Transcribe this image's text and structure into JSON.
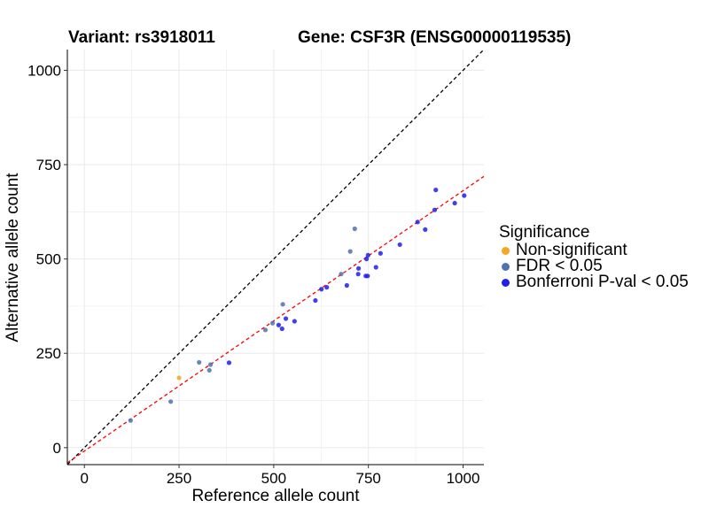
{
  "header": {
    "variant_label": "Variant: rs3918011",
    "gene_label": "Gene: CSF3R (ENSG00000119535)"
  },
  "colors": {
    "non_significant": "#F5A623",
    "fdr": "#4F72B0",
    "bonferroni": "#1F1FF0",
    "identity_line": "#000000",
    "fit_line": "#FF0000",
    "grid": "#EBEBEB"
  },
  "chart_data": {
    "type": "scatter",
    "title": "",
    "xlabel": "Reference allele count",
    "ylabel": "Alternative allele count",
    "xlim": [
      -45,
      1055
    ],
    "ylim": [
      -45,
      1055
    ],
    "xticks": [
      0,
      250,
      500,
      750,
      1000
    ],
    "yticks": [
      0,
      250,
      500,
      750,
      1000
    ],
    "grid": true,
    "legend_position": "right",
    "legend_title": "Significance",
    "reference_lines": [
      {
        "name": "identity",
        "style": "dashed",
        "color": "#000000",
        "slope": 1.0,
        "intercept": 0
      },
      {
        "name": "fit",
        "style": "dashed",
        "color": "#FF0000",
        "slope": 0.69,
        "intercept": -9
      }
    ],
    "series": [
      {
        "name": "Non-significant",
        "color": "#F5A623",
        "points": [
          [
            250,
            185
          ]
        ]
      },
      {
        "name": "FDR < 0.05",
        "color": "#4F72B0",
        "points": [
          [
            122,
            72
          ],
          [
            228,
            122
          ],
          [
            303,
            226
          ],
          [
            330,
            205
          ],
          [
            333,
            220
          ],
          [
            478,
            312
          ],
          [
            497,
            330
          ],
          [
            524,
            380
          ],
          [
            678,
            460
          ],
          [
            702,
            520
          ],
          [
            714,
            580
          ]
        ]
      },
      {
        "name": "Bonferroni P-val < 0.05",
        "color": "#1F1FF0",
        "points": [
          [
            382,
            225
          ],
          [
            513,
            325
          ],
          [
            522,
            315
          ],
          [
            532,
            342
          ],
          [
            555,
            335
          ],
          [
            610,
            390
          ],
          [
            626,
            420
          ],
          [
            640,
            425
          ],
          [
            693,
            430
          ],
          [
            723,
            460
          ],
          [
            724,
            475
          ],
          [
            743,
            455
          ],
          [
            745,
            500
          ],
          [
            748,
            455
          ],
          [
            749,
            510
          ],
          [
            770,
            478
          ],
          [
            782,
            515
          ],
          [
            833,
            538
          ],
          [
            880,
            598
          ],
          [
            900,
            578
          ],
          [
            925,
            630
          ],
          [
            928,
            683
          ],
          [
            978,
            648
          ],
          [
            1003,
            668
          ]
        ]
      }
    ]
  }
}
